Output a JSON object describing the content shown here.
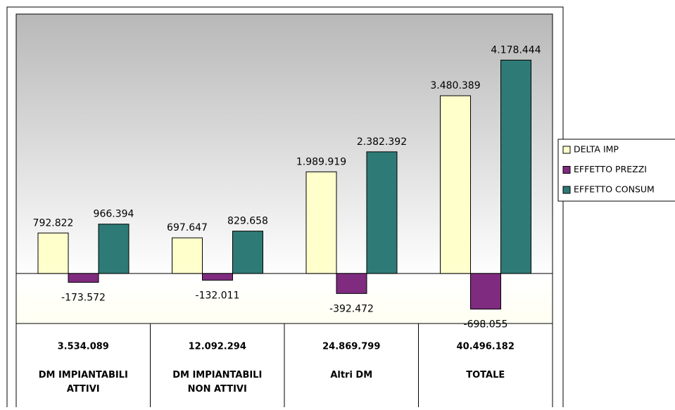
{
  "chart_data": {
    "type": "bar",
    "categories": [
      "DM IMPIANTABILI ATTIVI",
      "DM IMPIANTABILI NON ATTIVI",
      "Altri DM",
      "TOTALE"
    ],
    "category_totals": [
      "3.534.089",
      "12.092.294",
      "24.869.799",
      "40.496.182"
    ],
    "series": [
      {
        "name": "DELTA IMP",
        "color": "#ffffcc",
        "values": [
          792822,
          697647,
          1989919,
          3480389
        ],
        "value_labels": [
          "792.822",
          "697.647",
          "1.989.919",
          "3.480.389"
        ]
      },
      {
        "name": "EFFETTO PREZZI",
        "color": "#7f2b7f",
        "values": [
          -173572,
          -132011,
          -392472,
          -698055
        ],
        "value_labels": [
          "-173.572",
          "-132.011",
          "-392.472",
          "-698.055"
        ]
      },
      {
        "name": "EFFETTO CONSUM",
        "color": "#2e7a76",
        "values": [
          966394,
          829658,
          2382392,
          4178444
        ],
        "value_labels": [
          "966.394",
          "829.658",
          "2.382.392",
          "4.178.444"
        ]
      }
    ],
    "ylim": [
      -980000,
      5080000
    ],
    "legend": "right"
  }
}
